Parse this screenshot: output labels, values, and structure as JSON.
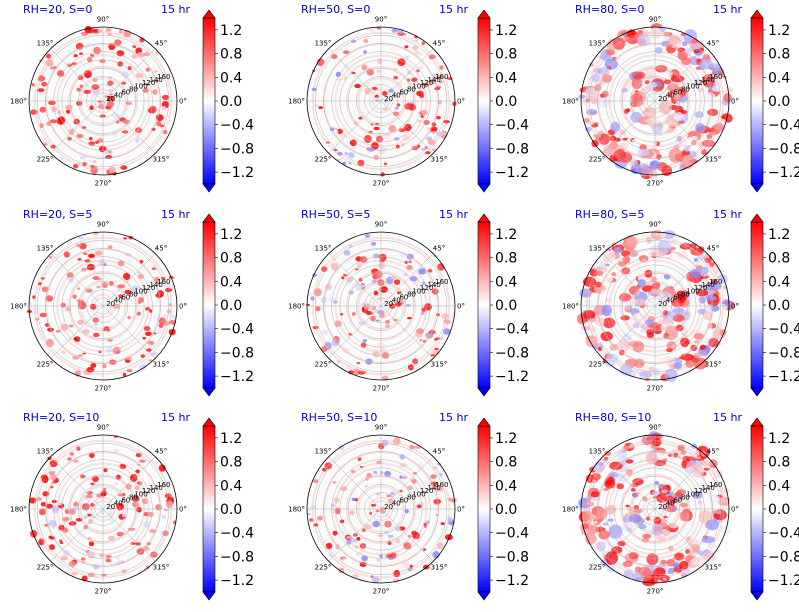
{
  "figure": {
    "time_label": "15 hr",
    "colormap": {
      "min_color": "#0000ff",
      "mid_color": "#ffffff",
      "max_color": "#ff0000"
    },
    "colorbar_ticks": [
      "1.2",
      "0.8",
      "0.4",
      "0.0",
      "−0.4",
      "−0.8",
      "−1.2"
    ],
    "angle_labels": [
      "90°",
      "45°",
      "0°",
      "315°",
      "270°",
      "225°",
      "180°",
      "135°"
    ],
    "radial_labels": [
      "20",
      "40",
      "60",
      "80",
      "100",
      "120",
      "140",
      "160"
    ]
  },
  "chart_data": [
    {
      "type": "heatmap",
      "projection": "polar",
      "title": "RH=20, S=0",
      "time": "15 hr",
      "rlim": [
        0,
        180
      ],
      "clim": [
        -1.4,
        1.4
      ],
      "grid": true
    },
    {
      "type": "heatmap",
      "projection": "polar",
      "title": "RH=50, S=0",
      "time": "15 hr",
      "rlim": [
        0,
        180
      ],
      "clim": [
        -1.4,
        1.4
      ],
      "grid": true
    },
    {
      "type": "heatmap",
      "projection": "polar",
      "title": "RH=80, S=0",
      "time": "15 hr",
      "rlim": [
        0,
        180
      ],
      "clim": [
        -1.4,
        1.4
      ],
      "grid": true
    },
    {
      "type": "heatmap",
      "projection": "polar",
      "title": "RH=20, S=5",
      "time": "15 hr",
      "rlim": [
        0,
        180
      ],
      "clim": [
        -1.4,
        1.4
      ],
      "grid": true
    },
    {
      "type": "heatmap",
      "projection": "polar",
      "title": "RH=50, S=5",
      "time": "15 hr",
      "rlim": [
        0,
        180
      ],
      "clim": [
        -1.4,
        1.4
      ],
      "grid": true
    },
    {
      "type": "heatmap",
      "projection": "polar",
      "title": "RH=80, S=5",
      "time": "15 hr",
      "rlim": [
        0,
        180
      ],
      "clim": [
        -1.4,
        1.4
      ],
      "grid": true
    },
    {
      "type": "heatmap",
      "projection": "polar",
      "title": "RH=20, S=10",
      "time": "15 hr",
      "rlim": [
        0,
        180
      ],
      "clim": [
        -1.4,
        1.4
      ],
      "grid": true
    },
    {
      "type": "heatmap",
      "projection": "polar",
      "title": "RH=50, S=10",
      "time": "15 hr",
      "rlim": [
        0,
        180
      ],
      "clim": [
        -1.4,
        1.4
      ],
      "grid": true
    },
    {
      "type": "heatmap",
      "projection": "polar",
      "title": "RH=80, S=10",
      "time": "15 hr",
      "rlim": [
        0,
        180
      ],
      "clim": [
        -1.4,
        1.4
      ],
      "grid": true
    }
  ]
}
